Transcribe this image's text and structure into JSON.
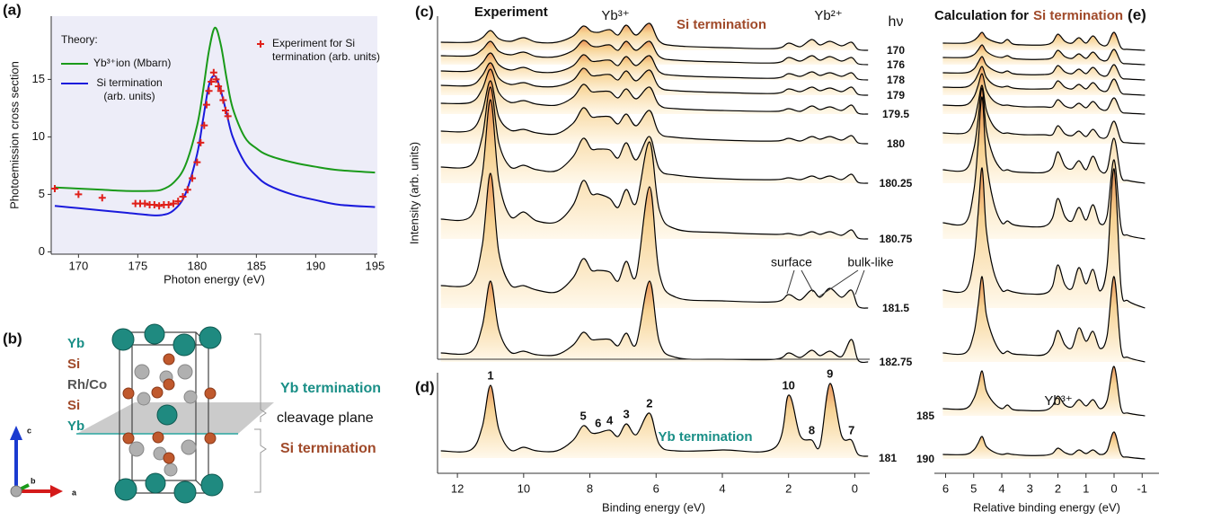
{
  "chart_data": [
    {
      "type": "line",
      "panel": "(a)",
      "xlabel": "Photon energy (eV)",
      "ylabel": "Photoemission cross section",
      "xlim": [
        167.7,
        195.2
      ],
      "ylim": [
        -0.2,
        20.5
      ],
      "xticks": [
        170,
        175,
        180,
        185,
        190,
        195
      ],
      "yticks": [
        0,
        5,
        10,
        15
      ],
      "legend_title": "Theory:",
      "series": [
        {
          "name": "Yb³⁺ion (Mbarn)",
          "color": "#1a9a1a",
          "x": [
            168,
            170,
            172,
            174,
            176,
            177,
            178,
            179,
            180,
            180.5,
            181,
            181.5,
            182,
            182.5,
            183,
            184,
            185,
            186,
            188,
            190,
            192,
            195
          ],
          "values": [
            5.6,
            5.5,
            5.4,
            5.3,
            5.3,
            5.4,
            6,
            7.5,
            11,
            14,
            17.5,
            19.5,
            18,
            15,
            12.5,
            10,
            9,
            8.4,
            7.8,
            7.4,
            7.1,
            6.9
          ]
        },
        {
          "name": "Si termination (arb. units)",
          "color": "#1a1adc",
          "x": [
            168,
            170,
            172,
            174,
            176,
            177,
            178,
            179,
            180,
            180.5,
            181,
            181.5,
            182,
            182.5,
            183,
            184,
            185,
            186,
            188,
            190,
            192,
            195
          ],
          "values": [
            4,
            3.8,
            3.6,
            3.4,
            3.2,
            3.2,
            3.6,
            5,
            8.5,
            11.5,
            14.5,
            15.3,
            14,
            12,
            10,
            7.8,
            6.6,
            5.8,
            5,
            4.5,
            4.1,
            3.9
          ]
        },
        {
          "name": "Experiment for Si termination (arb. units)",
          "type": "scatter",
          "color": "#e0201a",
          "x": [
            168,
            170,
            172,
            174.8,
            175.2,
            175.6,
            176,
            176.4,
            176.8,
            177.2,
            177.6,
            178,
            178.4,
            178.8,
            179.2,
            179.6,
            180,
            180.3,
            180.6,
            180.8,
            181,
            181.2,
            181.4,
            181.6,
            181.8,
            182,
            182.2,
            182.4,
            182.6
          ],
          "values": [
            5.5,
            5,
            4.7,
            4.2,
            4.2,
            4.2,
            4.1,
            4.1,
            4.0,
            4.1,
            4.1,
            4.2,
            4.4,
            4.8,
            5.4,
            6.4,
            7.8,
            9.5,
            11,
            12.8,
            14,
            14.8,
            15.6,
            15,
            14.4,
            14,
            13.2,
            12.3,
            11.8
          ]
        }
      ]
    },
    {
      "type": "waterfall",
      "panel": "(c)",
      "title": "Experiment",
      "subtitle": "Si termination",
      "region_labels": [
        "Yb³⁺",
        "Yb²⁺"
      ],
      "legend_title": "hν",
      "annotations": [
        "surface",
        "bulk-like"
      ],
      "ylabel": "Intensity (arb. units)",
      "color": "#000000",
      "xlim": [
        12.6,
        -0.45
      ],
      "x": [
        12.5,
        11.6,
        11.25,
        11.0,
        10.75,
        10.4,
        10.0,
        9.6,
        9.0,
        8.5,
        8.2,
        7.95,
        7.75,
        7.4,
        7.15,
        6.9,
        6.6,
        6.2,
        5.9,
        5.4,
        4.0,
        2.4,
        2.0,
        1.65,
        1.3,
        1.05,
        0.75,
        0.4,
        0.1,
        -0.1,
        -0.4
      ],
      "series": [
        {
          "name": "170",
          "values": [
            9,
            9,
            14,
            22,
            13,
            10,
            14,
            9,
            9,
            16,
            27,
            21,
            20,
            23,
            17,
            28,
            17,
            30,
            10,
            5,
            3,
            2,
            8,
            4,
            12,
            6,
            10,
            5,
            9,
            1,
            0
          ]
        },
        {
          "name": "176",
          "values": [
            10,
            10,
            17,
            26,
            15,
            11,
            14,
            9,
            9,
            16,
            27,
            21,
            20,
            22,
            16,
            26,
            16,
            26,
            9,
            5,
            3,
            2,
            8,
            4,
            10,
            5,
            9,
            4,
            8,
            1,
            0
          ]
        },
        {
          "name": "178",
          "values": [
            10,
            10,
            19,
            30,
            17,
            11,
            14,
            9,
            9,
            16,
            28,
            21,
            21,
            22,
            16,
            26,
            16,
            27,
            9,
            5,
            3,
            2,
            7,
            4,
            9,
            5,
            8,
            4,
            8,
            1,
            0
          ]
        },
        {
          "name": "179",
          "values": [
            11,
            11,
            22,
            36,
            19,
            12,
            14,
            10,
            10,
            17,
            30,
            22,
            22,
            23,
            17,
            27,
            16,
            28,
            9,
            5,
            3,
            2,
            7,
            4,
            9,
            5,
            8,
            4,
            9,
            1,
            0
          ]
        },
        {
          "name": "179.5",
          "values": [
            12,
            13,
            28,
            50,
            24,
            13,
            15,
            11,
            10,
            19,
            33,
            25,
            25,
            25,
            18,
            28,
            17,
            30,
            10,
            6,
            4,
            3,
            6,
            3,
            9,
            5,
            8,
            4,
            10,
            1,
            0
          ]
        },
        {
          "name": "180",
          "values": [
            14,
            15,
            36,
            70,
            30,
            15,
            16,
            12,
            11,
            23,
            40,
            30,
            30,
            30,
            22,
            33,
            20,
            37,
            12,
            7,
            4,
            3,
            6,
            3,
            8,
            5,
            8,
            4,
            9,
            1,
            0
          ]
        },
        {
          "name": "180.25",
          "values": [
            18,
            20,
            52,
            107,
            45,
            18,
            20,
            15,
            14,
            30,
            50,
            38,
            38,
            37,
            28,
            45,
            26,
            52,
            16,
            9,
            5,
            4,
            6,
            4,
            8,
            5,
            8,
            4,
            10,
            1,
            0
          ]
        },
        {
          "name": "180.75",
          "values": [
            22,
            25,
            72,
            155,
            65,
            25,
            30,
            20,
            19,
            38,
            65,
            50,
            50,
            45,
            35,
            55,
            40,
            108,
            32,
            11,
            7,
            5,
            6,
            4,
            8,
            5,
            8,
            4,
            10,
            1,
            0
          ]
        },
        {
          "name": "181.5",
          "values": [
            25,
            28,
            70,
            150,
            62,
            26,
            25,
            20,
            18,
            34,
            55,
            42,
            42,
            40,
            30,
            52,
            36,
            135,
            38,
            12,
            8,
            7,
            15,
            9,
            20,
            12,
            22,
            12,
            20,
            2,
            0
          ]
        },
        {
          "name": "182.75",
          "values": [
            10,
            11,
            40,
            90,
            36,
            11,
            12,
            8,
            8,
            19,
            33,
            25,
            25,
            25,
            18,
            32,
            20,
            90,
            22,
            5,
            3,
            3,
            10,
            5,
            13,
            7,
            12,
            6,
            25,
            2,
            0
          ]
        }
      ]
    },
    {
      "type": "waterfall",
      "panel": "(d)",
      "subtitle": "Yb termination",
      "xlabel": "Binding energy (eV)",
      "color": "#000000",
      "xlim": [
        12.6,
        -0.45
      ],
      "xticks": [
        12,
        10,
        8,
        6,
        4,
        2,
        0
      ],
      "x": [
        12.5,
        11.6,
        11.25,
        11.0,
        10.75,
        10.4,
        10.0,
        9.6,
        9.0,
        8.5,
        8.2,
        7.95,
        7.75,
        7.4,
        7.15,
        6.9,
        6.6,
        6.2,
        5.9,
        5.4,
        4.0,
        2.4,
        2.0,
        1.65,
        1.3,
        1.05,
        0.75,
        0.4,
        0.1,
        -0.1,
        -0.4
      ],
      "series": [
        {
          "name": "181",
          "values": [
            8,
            9,
            35,
            81,
            32,
            9,
            12,
            8,
            8,
            20,
            36,
            28,
            28,
            31,
            24,
            38,
            26,
            50,
            15,
            8,
            9,
            12,
            70,
            25,
            20,
            14,
            83,
            25,
            20,
            4,
            2
          ]
        }
      ],
      "peak_labels": [
        "1",
        "2",
        "3",
        "4",
        "5",
        "6",
        "7",
        "8",
        "9",
        "10"
      ],
      "peak_x": [
        11.0,
        6.2,
        6.9,
        7.4,
        8.2,
        7.75,
        0.1,
        1.3,
        0.75,
        2.0
      ]
    },
    {
      "type": "waterfall",
      "panel": "(e)",
      "title": "Calculation for",
      "subtitle": "Si termination",
      "annotations": [
        "Yb³⁺"
      ],
      "xlabel": "Relative binding energy (eV)",
      "color": "#000000",
      "xlim": [
        6.4,
        -1.6
      ],
      "xticks": [
        6,
        5,
        4,
        3,
        2,
        1,
        0,
        -1
      ],
      "x": [
        6.1,
        5.3,
        5.0,
        4.85,
        4.7,
        4.55,
        4.3,
        4.0,
        3.8,
        3.6,
        3.2,
        2.5,
        2.2,
        2.0,
        1.75,
        1.5,
        1.25,
        1.0,
        0.75,
        0.5,
        0.25,
        0.0,
        -0.25,
        -0.5,
        -1.1
      ],
      "series": [
        {
          "name": null,
          "values": [
            8,
            8,
            11,
            15,
            20,
            14,
            10,
            8,
            12,
            7,
            6,
            6,
            9,
            18,
            10,
            8,
            14,
            8,
            16,
            7,
            6,
            20,
            3,
            1,
            0
          ]
        },
        {
          "name": null,
          "values": [
            8,
            8,
            11,
            16,
            22,
            15,
            10,
            8,
            10,
            7,
            6,
            6,
            8,
            16,
            9,
            7,
            12,
            7,
            14,
            6,
            5,
            17,
            3,
            1,
            0
          ]
        },
        {
          "name": null,
          "values": [
            8,
            8,
            12,
            19,
            26,
            17,
            11,
            8,
            10,
            7,
            6,
            6,
            8,
            16,
            9,
            7,
            12,
            7,
            14,
            6,
            5,
            17,
            3,
            1,
            0
          ]
        },
        {
          "name": null,
          "values": [
            9,
            9,
            15,
            23,
            32,
            20,
            12,
            9,
            10,
            8,
            7,
            7,
            8,
            16,
            9,
            7,
            12,
            7,
            14,
            6,
            5,
            18,
            3,
            1,
            0
          ]
        },
        {
          "name": null,
          "values": [
            10,
            10,
            19,
            31,
            45,
            27,
            15,
            10,
            10,
            9,
            8,
            8,
            8,
            16,
            9,
            7,
            12,
            7,
            14,
            6,
            5,
            18,
            3,
            1,
            0
          ]
        },
        {
          "name": null,
          "values": [
            12,
            12,
            25,
            44,
            65,
            38,
            20,
            12,
            12,
            11,
            10,
            10,
            10,
            20,
            11,
            9,
            14,
            8,
            16,
            7,
            8,
            25,
            4,
            1,
            0
          ]
        },
        {
          "name": null,
          "values": [
            15,
            15,
            38,
            69,
            106,
            60,
            30,
            15,
            15,
            13,
            12,
            12,
            18,
            35,
            19,
            16,
            25,
            15,
            30,
            14,
            15,
            50,
            8,
            3,
            0
          ]
        },
        {
          "name": null,
          "values": [
            18,
            18,
            53,
            102,
            158,
            88,
            42,
            18,
            20,
            16,
            14,
            14,
            23,
            45,
            25,
            20,
            35,
            21,
            38,
            17,
            26,
            88,
            13,
            4,
            0
          ]
        },
        {
          "name": null,
          "values": [
            20,
            20,
            54,
            102,
            156,
            87,
            42,
            20,
            20,
            18,
            16,
            16,
            24,
            48,
            26,
            22,
            45,
            27,
            43,
            19,
            47,
            155,
            23,
            8,
            0
          ]
        },
        {
          "name": null,
          "values": [
            10,
            10,
            31,
            61,
            95,
            53,
            26,
            10,
            12,
            9,
            8,
            8,
            18,
            35,
            19,
            16,
            38,
            23,
            34,
            15,
            29,
            95,
            14,
            5,
            0
          ]
        },
        {
          "name": "185",
          "values": [
            8,
            8,
            19,
            33,
            50,
            28,
            15,
            8,
            12,
            7,
            6,
            6,
            11,
            22,
            12,
            10,
            18,
            11,
            18,
            8,
            17,
            55,
            8,
            3,
            0
          ]
        },
        {
          "name": "190",
          "values": [
            5,
            5,
            10,
            17,
            25,
            14,
            8,
            5,
            6,
            5,
            4,
            4,
            6,
            12,
            7,
            5,
            10,
            6,
            10,
            5,
            9,
            30,
            5,
            2,
            0
          ]
        }
      ]
    }
  ],
  "structure": {
    "panel": "(b)",
    "layers": [
      "Yb",
      "Si",
      "Rh/Co",
      "Si",
      "Yb"
    ],
    "terminations": [
      "Yb termination",
      "Si termination"
    ],
    "plane": "cleavage plane",
    "axes": [
      "c",
      "b",
      "a"
    ]
  }
}
